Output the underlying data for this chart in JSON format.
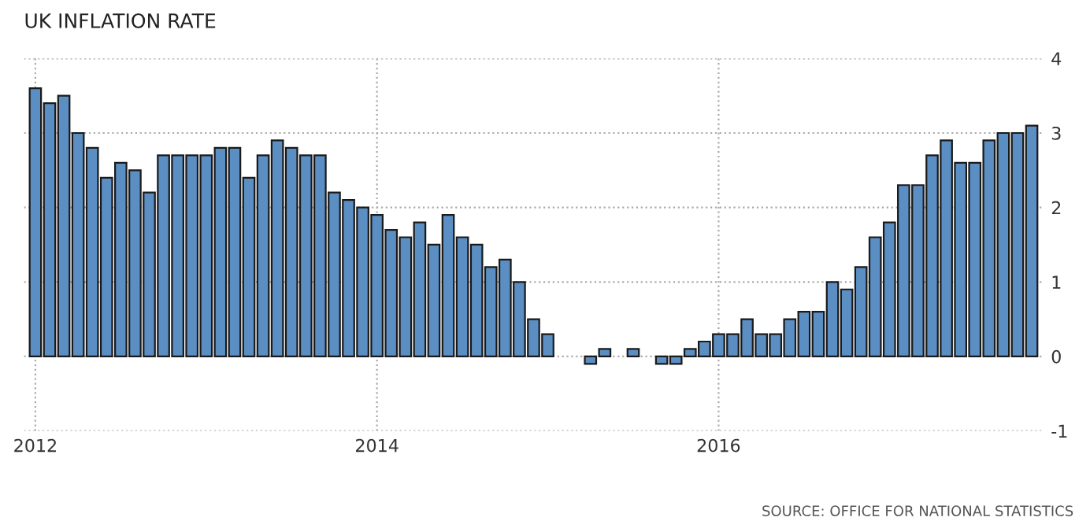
{
  "chart_data": {
    "type": "bar",
    "title": "UK INFLATION RATE",
    "categories": [
      "2012",
      null,
      null,
      null,
      null,
      null,
      null,
      null,
      null,
      null,
      null,
      null,
      null,
      null,
      null,
      null,
      null,
      null,
      null,
      null,
      null,
      null,
      null,
      null,
      "2014",
      null,
      null,
      null,
      null,
      null,
      null,
      null,
      null,
      null,
      null,
      null,
      null,
      null,
      null,
      null,
      null,
      null,
      null,
      null,
      null,
      null,
      null,
      null,
      "2016",
      null,
      null,
      null,
      null,
      null,
      null,
      null,
      null,
      null,
      null,
      null,
      null,
      null,
      null,
      null,
      null,
      null,
      null,
      null,
      null,
      null,
      null
    ],
    "values": [
      3.6,
      3.4,
      3.5,
      3.0,
      2.8,
      2.4,
      2.6,
      2.5,
      2.2,
      2.7,
      2.7,
      2.7,
      2.7,
      2.8,
      2.8,
      2.4,
      2.7,
      2.9,
      2.8,
      2.7,
      2.7,
      2.2,
      2.1,
      2.0,
      1.9,
      1.7,
      1.6,
      1.8,
      1.5,
      1.9,
      1.6,
      1.5,
      1.2,
      1.3,
      1.0,
      0.5,
      0.3,
      0.0,
      0.0,
      -0.1,
      0.1,
      0.0,
      0.1,
      0.0,
      -0.1,
      -0.1,
      0.1,
      0.2,
      0.3,
      0.3,
      0.5,
      0.3,
      0.3,
      0.5,
      0.6,
      0.6,
      1.0,
      0.9,
      1.2,
      1.6,
      1.8,
      2.3,
      2.3,
      2.7,
      2.9,
      2.6,
      2.6,
      2.9,
      3.0,
      3.0,
      3.1
    ],
    "color": "#5b8fc4",
    "ylim": [
      -1,
      4
    ],
    "yticks": [
      -1,
      0,
      1,
      2,
      3,
      4
    ],
    "grid": true,
    "annotations": [
      "SOURCE: OFFICE FOR NATIONAL STATISTICS"
    ]
  }
}
